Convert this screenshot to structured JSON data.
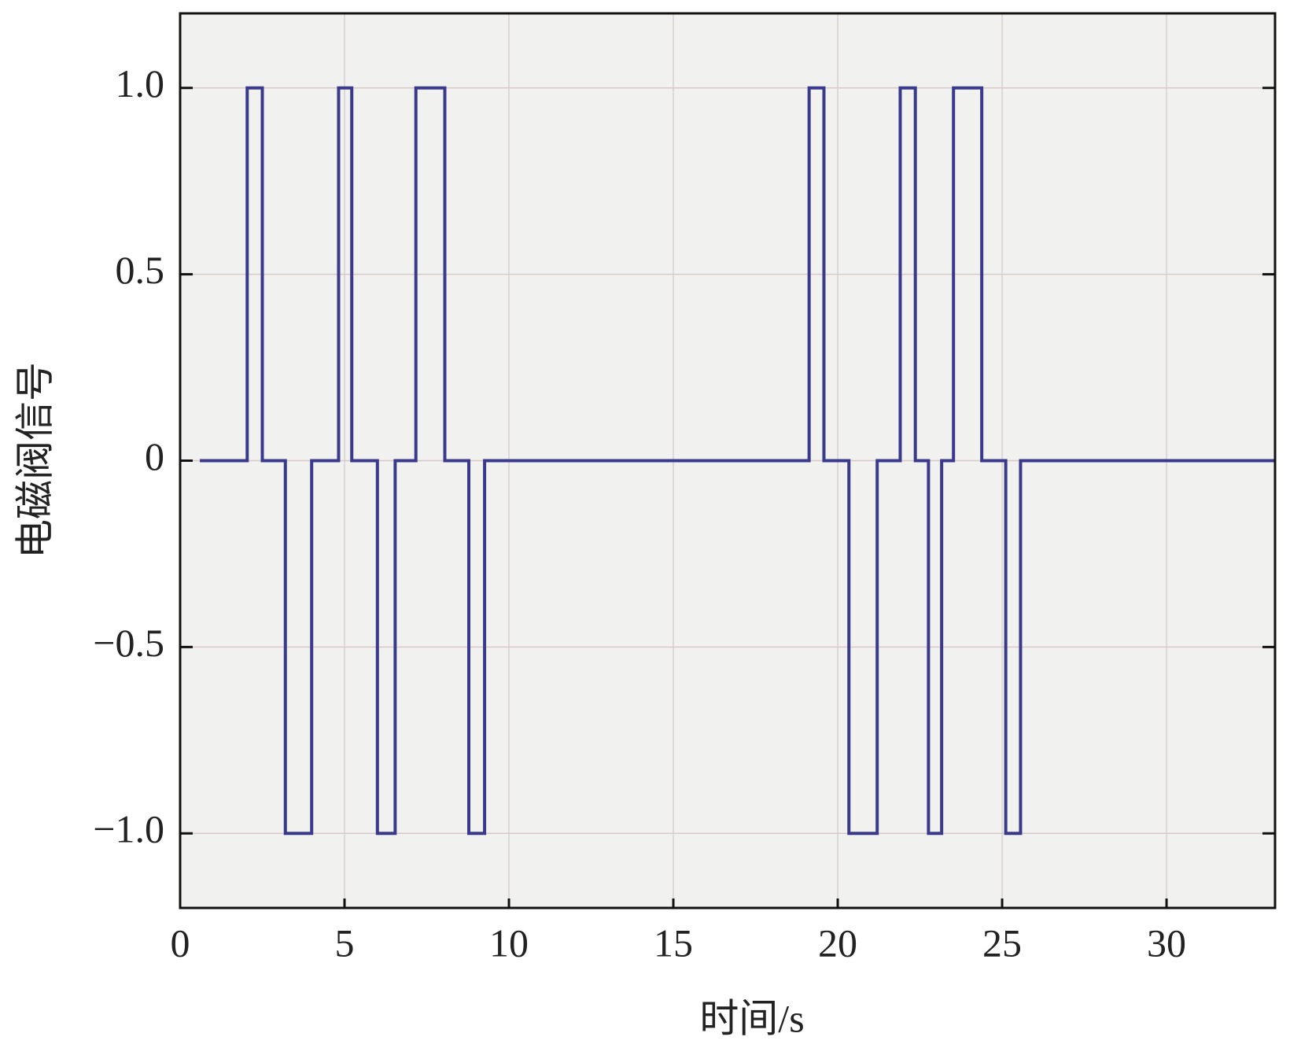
{
  "chart_data": {
    "type": "line",
    "xlabel": "时间/s",
    "ylabel": "电磁阀信号",
    "x": [
      0.6,
      2.04,
      2.04,
      2.5,
      2.5,
      3.2,
      3.2,
      4.0,
      4.0,
      4.82,
      4.82,
      5.22,
      5.22,
      6.0,
      6.0,
      6.54,
      6.54,
      7.17,
      7.17,
      8.05,
      8.05,
      8.78,
      8.78,
      9.26,
      9.26,
      19.13,
      19.13,
      19.58,
      19.58,
      20.34,
      20.34,
      21.2,
      21.2,
      21.9,
      21.9,
      22.36,
      22.36,
      22.76,
      22.76,
      23.16,
      23.16,
      23.52,
      23.52,
      24.38,
      24.38,
      25.11,
      25.11,
      25.56,
      25.56,
      33.3
    ],
    "values": [
      0,
      0,
      1,
      1,
      0,
      0,
      -1,
      -1,
      0,
      0,
      1,
      1,
      0,
      0,
      -1,
      -1,
      0,
      0,
      1,
      1,
      0,
      0,
      -1,
      -1,
      0,
      0,
      1,
      1,
      0,
      0,
      -1,
      -1,
      0,
      0,
      1,
      1,
      0,
      0,
      -1,
      -1,
      0,
      0,
      1,
      1,
      0,
      0,
      -1,
      -1,
      0,
      0
    ],
    "color": "#3a3a8c",
    "xlim": [
      0,
      33.3
    ],
    "xticks": [
      0,
      5,
      10,
      15,
      20,
      25,
      30
    ],
    "ylim": [
      -1.2,
      1.2
    ],
    "yticks": [
      {
        "value": -1,
        "label": "−1.0"
      },
      {
        "value": -0.5,
        "label": "−0.5"
      },
      0,
      0.5,
      {
        "value": 1,
        "label": "1.0"
      }
    ],
    "grid": true
  }
}
